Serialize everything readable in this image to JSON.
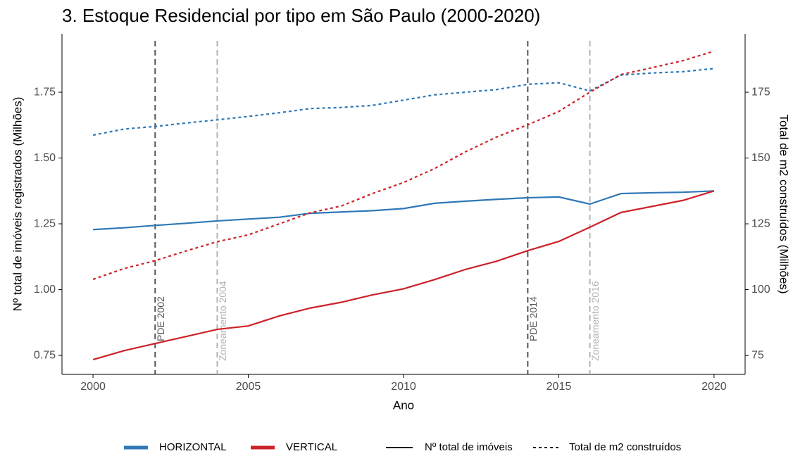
{
  "chart_data": {
    "type": "line",
    "title": "3. Estoque Residencial por tipo em São Paulo (2000-2020)",
    "x_label": "Ano",
    "y_label": "Nº total de imóveis registrados (Milhões)",
    "y2_label": "Total de m2 construídos (Milhões)",
    "x": [
      2000,
      2001,
      2002,
      2003,
      2004,
      2005,
      2006,
      2007,
      2008,
      2009,
      2010,
      2011,
      2012,
      2013,
      2014,
      2015,
      2016,
      2017,
      2018,
      2019,
      2020
    ],
    "xlim": [
      1999,
      2021
    ],
    "xticks": [
      2000,
      2005,
      2010,
      2015,
      2020
    ],
    "ylim": [
      0.678,
      1.972
    ],
    "yticks": [
      0.75,
      {
        "value": 1,
        "label": "1.00"
      },
      1.25,
      {
        "value": 1.5,
        "label": "1.50"
      },
      1.75
    ],
    "y2lim": [
      67.8,
      197.2
    ],
    "y2ticks": [
      75,
      100,
      125,
      150,
      175
    ],
    "measures": [
      {
        "name": "Nº total de imóveis",
        "dashed": false,
        "axis": "y"
      },
      {
        "name": "Total de m2 construídos",
        "dashed": true,
        "axis": "y2"
      }
    ],
    "series": [
      {
        "name": "HORIZONTAL",
        "color": "#2e78b7",
        "values": [
          1.228,
          1.235,
          1.244,
          1.252,
          1.261,
          1.268,
          1.275,
          1.29,
          1.295,
          1.3,
          1.308,
          1.328,
          1.336,
          1.343,
          1.349,
          1.352,
          1.325,
          1.365,
          1.368,
          1.37,
          1.375
        ],
        "values_m2": [
          158.7,
          161,
          162,
          163.3,
          164.5,
          165.8,
          167.2,
          168.8,
          169.2,
          170,
          172,
          174,
          175,
          176,
          178,
          178.6,
          175.5,
          181.5,
          182.3,
          182.8,
          184
        ]
      },
      {
        "name": "VERTICAL",
        "color": "#cc2229",
        "values": [
          0.734,
          0.768,
          0.795,
          0.822,
          0.849,
          0.862,
          0.9,
          0.93,
          0.952,
          0.98,
          1.003,
          1.038,
          1.077,
          1.108,
          1.148,
          1.183,
          1.237,
          1.293,
          1.316,
          1.339,
          1.375
        ],
        "values_m2": [
          103.9,
          108,
          111,
          114.7,
          118.2,
          120.8,
          125,
          129.2,
          131.8,
          136.5,
          140.7,
          146,
          152.4,
          158,
          162.6,
          167.7,
          175,
          181.7,
          184.3,
          187,
          190.6
        ]
      }
    ],
    "annotations": [
      {
        "x": 2002,
        "label": "PDE 2002",
        "color": "#555555"
      },
      {
        "x": 2004,
        "label": "Zoneamento 2004",
        "color": "#b3b3b3"
      },
      {
        "x": 2014,
        "label": "PDE 2014",
        "color": "#555555"
      },
      {
        "x": 2016,
        "label": "Zoneamento 2016",
        "color": "#b3b3b3"
      }
    ]
  }
}
